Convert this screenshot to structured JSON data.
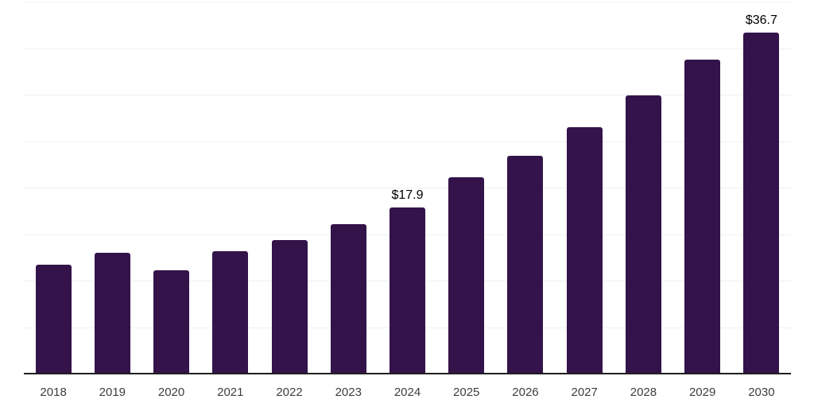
{
  "chart_data": {
    "type": "bar",
    "title": "",
    "xlabel": "",
    "ylabel": "",
    "categories": [
      "2018",
      "2019",
      "2020",
      "2021",
      "2022",
      "2023",
      "2024",
      "2025",
      "2026",
      "2027",
      "2028",
      "2029",
      "2030"
    ],
    "values": [
      11.7,
      13.0,
      11.1,
      13.2,
      14.4,
      16.1,
      17.9,
      21.1,
      23.4,
      26.5,
      29.9,
      33.8,
      36.7
    ],
    "data_labels": [
      {
        "category": "2024",
        "text": "$17.9"
      },
      {
        "category": "2030",
        "text": "$36.7"
      }
    ],
    "ylim": [
      0,
      40
    ],
    "grid_step": 5,
    "grid": "horizontal",
    "legend": "none",
    "y_axis_labels_visible": false,
    "colors": {
      "bar": "#331349",
      "axis_line": "#1f1f1f",
      "gridline": "#f0f0f0",
      "tick_label": "#3d3d3d",
      "data_label": "#000000",
      "background": "#ffffff"
    }
  }
}
